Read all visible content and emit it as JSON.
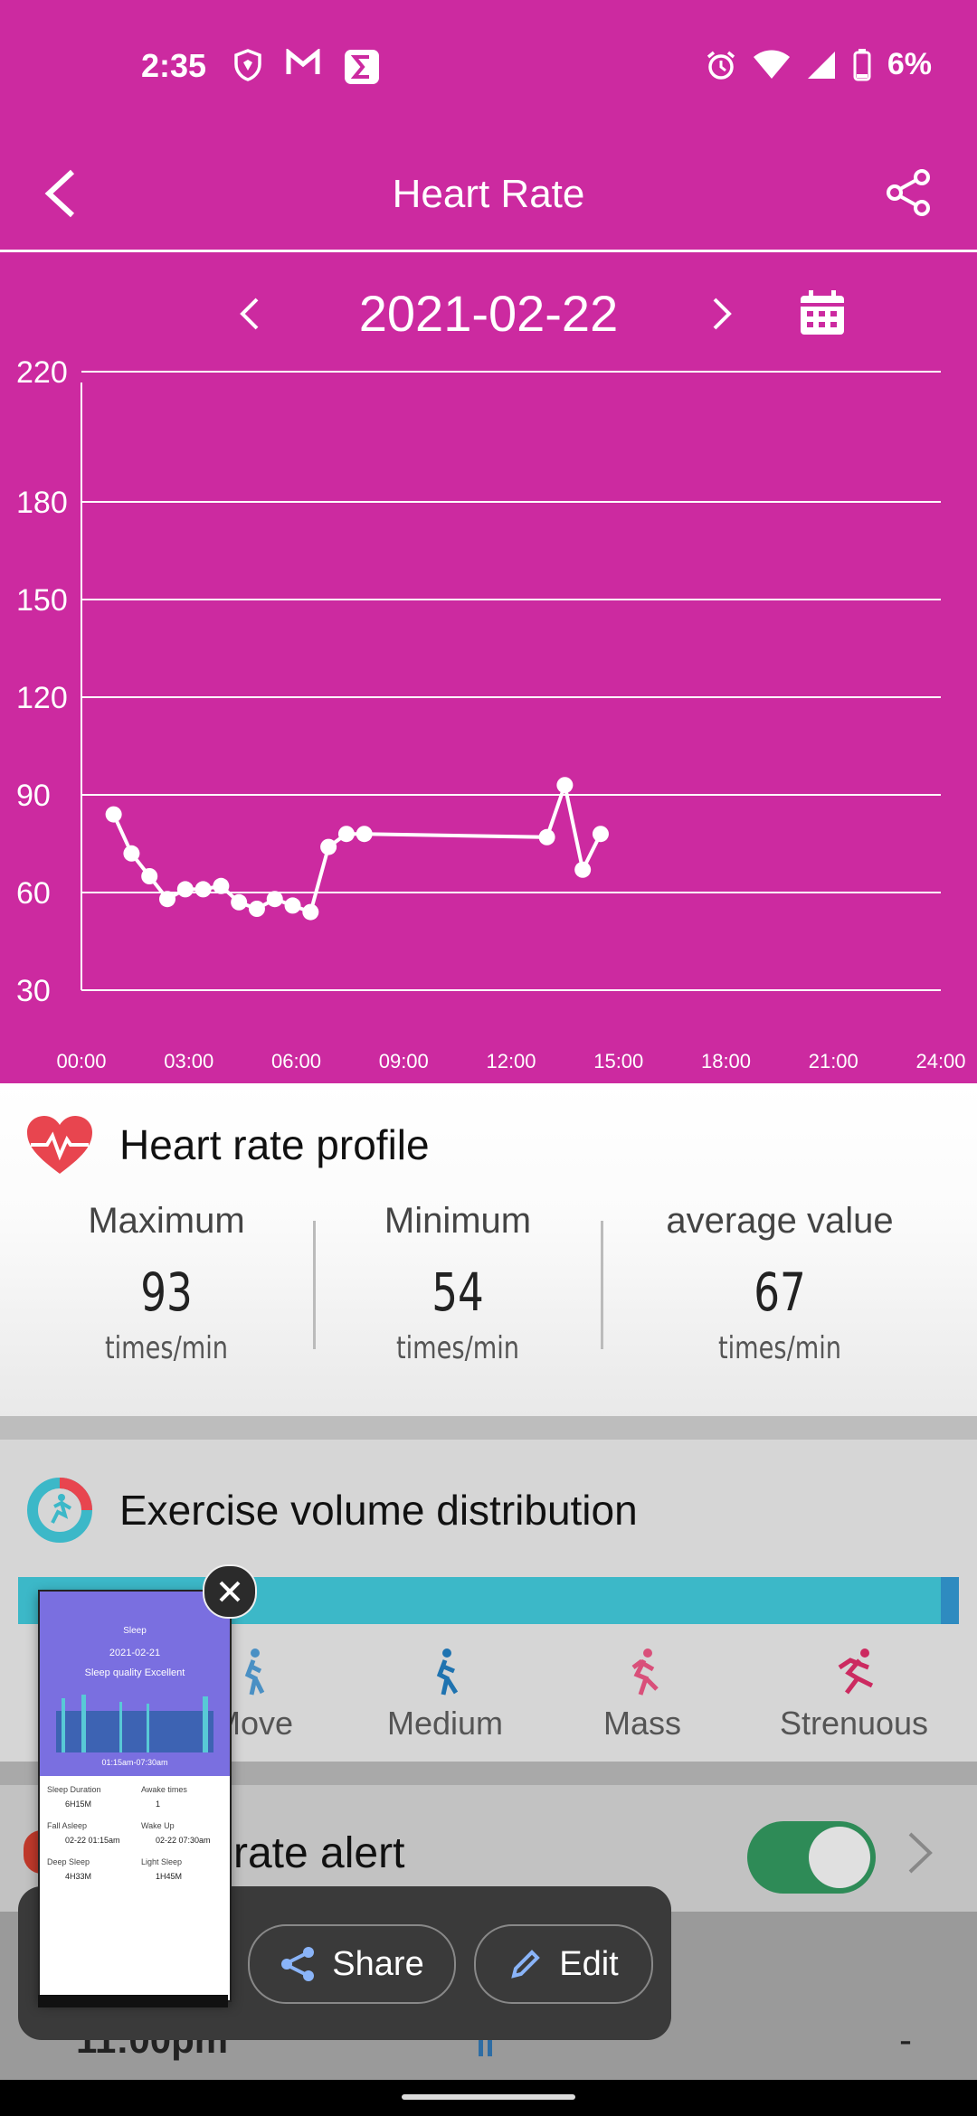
{
  "status_bar": {
    "time": "2:35",
    "battery": "6%"
  },
  "app_bar": {
    "title": "Heart Rate"
  },
  "date_nav": {
    "date": "2021-02-22"
  },
  "chart_data": {
    "type": "line",
    "x_ticks": [
      "00:00",
      "03:00",
      "06:00",
      "09:00",
      "12:00",
      "15:00",
      "18:00",
      "21:00",
      "24:00"
    ],
    "y_ticks": [
      220,
      180,
      150,
      120,
      90,
      60,
      30
    ],
    "ylim": [
      30,
      220
    ],
    "xlim_hours": [
      0,
      24
    ],
    "grid": true,
    "series": [
      {
        "x_hours": [
          0.9,
          1.4,
          1.9,
          2.4,
          2.9,
          3.4,
          3.9,
          4.4,
          4.9,
          5.4,
          5.9,
          6.4,
          6.9,
          7.4,
          7.9,
          13.0,
          13.5,
          14.0,
          14.5
        ],
        "values": [
          84,
          72,
          65,
          58,
          61,
          61,
          62,
          57,
          55,
          58,
          56,
          54,
          74,
          78,
          78,
          77,
          93,
          67,
          78
        ]
      }
    ]
  },
  "profile": {
    "title": "Heart rate profile",
    "stats": [
      {
        "label": "Maximum",
        "value": "93",
        "unit": "times/min"
      },
      {
        "label": "Minimum",
        "value": "54",
        "unit": "times/min"
      },
      {
        "label": "average value",
        "value": "67",
        "unit": "times/min"
      }
    ]
  },
  "exercise": {
    "title": "Exercise volume distribution",
    "levels": [
      "Move",
      "Medium",
      "Mass",
      "Strenuous"
    ]
  },
  "alert": {
    "label": "rate alert",
    "enabled": true
  },
  "bottom_row": {
    "time": "11:00pm",
    "value": "-"
  },
  "screenshot_overlay": {
    "share_label": "Share",
    "edit_label": "Edit",
    "thumbnail": {
      "title": "Sleep",
      "date": "2021-02-21",
      "quality": "Sleep quality Excellent",
      "range": "01:15am-07:30am",
      "rows": [
        {
          "label": "Sleep Duration",
          "value": "6H15M"
        },
        {
          "label": "Awake times",
          "value": "1"
        },
        {
          "label": "Fall Asleep",
          "value": "02-22 01:15am"
        },
        {
          "label": "Wake Up",
          "value": "02-22 07:30am"
        },
        {
          "label": "Deep Sleep",
          "value": "4H33M"
        },
        {
          "label": "Light Sleep",
          "value": "1H45M"
        }
      ]
    }
  },
  "colors": {
    "primary": "#cc2aa0",
    "accent_bar": "#3cb8c8",
    "toggle_on": "#2e8b57"
  }
}
